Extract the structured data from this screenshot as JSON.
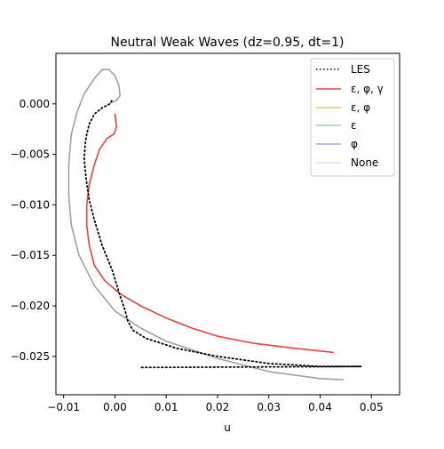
{
  "chart_data": {
    "type": "line",
    "title": "Neutral Weak Waves (dz=0.95, dt=1)",
    "xlabel": "u",
    "ylabel": "",
    "xlim": [
      -0.0115,
      0.0555
    ],
    "ylim": [
      -0.0288,
      0.005
    ],
    "xticks": [
      -0.01,
      0.0,
      0.01,
      0.02,
      0.03,
      0.04,
      0.05
    ],
    "xtick_labels": [
      "−0.01",
      "0.00",
      "0.01",
      "0.02",
      "0.03",
      "0.04",
      "0.05"
    ],
    "yticks": [
      0.0,
      -0.005,
      -0.01,
      -0.015,
      -0.02,
      -0.025
    ],
    "ytick_labels": [
      "0.000",
      "−0.005",
      "−0.010",
      "−0.015",
      "−0.020",
      "−0.025"
    ],
    "grid": false,
    "legend_position": "top-right",
    "series": [
      {
        "name": "LES",
        "color": "#000000",
        "style": "dotted",
        "x": [
          0.0052,
          0.048,
          0.04,
          0.03,
          0.02,
          0.012,
          0.006,
          0.0035,
          0.0025,
          0.002,
          0.001,
          -0.0005,
          -0.0025,
          -0.004,
          -0.005,
          -0.0056,
          -0.006,
          -0.0058,
          -0.0055,
          -0.005,
          -0.004,
          -0.0025,
          -0.001,
          -0.0005
        ],
        "y": [
          -0.0261,
          -0.026,
          -0.026,
          -0.0257,
          -0.025,
          -0.0242,
          -0.0232,
          -0.0224,
          -0.0215,
          -0.0205,
          -0.019,
          -0.0165,
          -0.014,
          -0.0115,
          -0.0095,
          -0.0075,
          -0.0055,
          -0.004,
          -0.003,
          -0.002,
          -0.001,
          -0.0004,
          0.0,
          0.0004
        ]
      },
      {
        "name": "ε, φ, γ",
        "color": "#ef3e3e",
        "style": "solid",
        "x": [
          0.0425,
          0.035,
          0.027,
          0.02,
          0.015,
          0.01,
          0.005,
          0.001,
          -0.002,
          -0.004,
          -0.005,
          -0.0055,
          -0.0055,
          -0.005,
          -0.004,
          -0.003,
          -0.0015,
          -0.0002,
          0.0003,
          0.0
        ],
        "y": [
          -0.0246,
          -0.0242,
          -0.0237,
          -0.023,
          -0.0222,
          -0.0212,
          -0.02,
          -0.0188,
          -0.0175,
          -0.016,
          -0.014,
          -0.012,
          -0.01,
          -0.008,
          -0.006,
          -0.0045,
          -0.0034,
          -0.003,
          -0.0023,
          -0.001
        ]
      },
      {
        "name": "ε, φ",
        "color": "#ffbf5f",
        "style": "solid",
        "x": [],
        "y": []
      },
      {
        "name": "ε",
        "color": "#a6d4a6",
        "style": "solid",
        "x": [],
        "y": []
      },
      {
        "name": "φ",
        "color": "#a9a9e0",
        "style": "solid",
        "x": [],
        "y": []
      },
      {
        "name": "None",
        "color": "#a0a0a0",
        "style": "solid",
        "x": [
          0.0445,
          0.04,
          0.03,
          0.02,
          0.01,
          0.005,
          0.0,
          -0.004,
          -0.007,
          -0.0085,
          -0.009,
          -0.009,
          -0.0085,
          -0.0075,
          -0.006,
          -0.004,
          -0.0025,
          -0.0012,
          0.0,
          0.0008,
          0.001,
          0.0002,
          -0.0008
        ],
        "y": [
          -0.0273,
          -0.0272,
          -0.0265,
          -0.0252,
          -0.0235,
          -0.0222,
          -0.0205,
          -0.018,
          -0.015,
          -0.012,
          -0.009,
          -0.006,
          -0.003,
          -0.001,
          0.001,
          0.0025,
          0.0034,
          0.0034,
          0.0028,
          0.0018,
          0.0008,
          0.0003,
          0.0001
        ]
      }
    ]
  },
  "legend": {
    "labels": [
      "LES",
      "ε, φ, γ",
      "ε, φ",
      "ε",
      "φ",
      "None"
    ]
  }
}
